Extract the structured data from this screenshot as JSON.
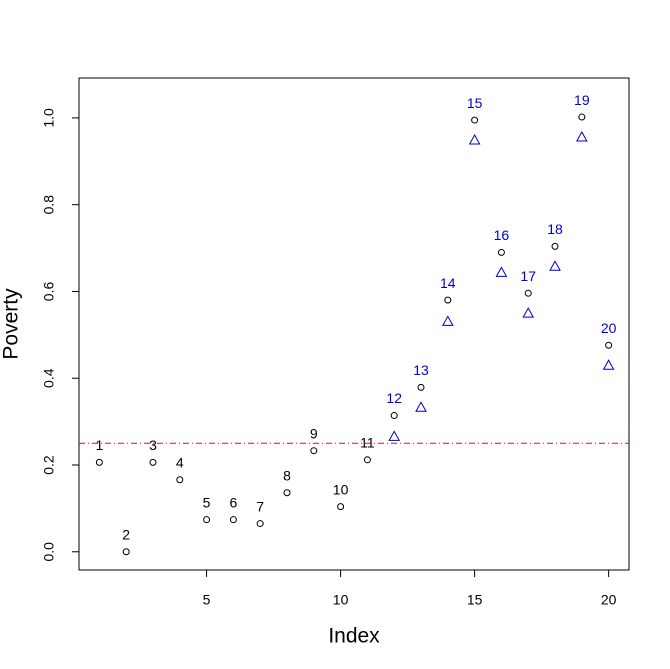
{
  "chart_data": {
    "type": "scatter",
    "x_label": "Index",
    "y_label": "Poverty",
    "x": [
      1,
      2,
      3,
      4,
      5,
      6,
      7,
      8,
      9,
      10,
      11,
      12,
      13,
      14,
      15,
      16,
      17,
      18,
      19,
      20
    ],
    "series": [
      {
        "color": "#000000",
        "marker": "circle",
        "values": [
          0.206,
          0.0,
          0.206,
          0.166,
          0.074,
          0.074,
          0.065,
          0.136,
          0.233,
          0.104,
          0.212,
          0.314,
          0.379,
          0.58,
          0.995,
          0.69,
          0.596,
          0.704,
          1.002,
          0.476
        ]
      },
      {
        "color": "#0000cd",
        "marker": "triangle",
        "values": [
          null,
          null,
          null,
          null,
          null,
          null,
          null,
          null,
          null,
          null,
          null,
          0.266,
          0.333,
          0.531,
          0.949,
          0.644,
          0.55,
          0.658,
          0.956,
          0.43
        ]
      }
    ],
    "point_labels": [
      "1",
      "2",
      "3",
      "4",
      "5",
      "6",
      "7",
      "8",
      "9",
      "10",
      "11",
      "12",
      "13",
      "14",
      "15",
      "16",
      "17",
      "18",
      "19",
      "20"
    ],
    "label_colors": [
      "#000000",
      "#000000",
      "#000000",
      "#000000",
      "#000000",
      "#000000",
      "#000000",
      "#000000",
      "#000000",
      "#000000",
      "#000000",
      "#0000cd",
      "#0000cd",
      "#0000cd",
      "#0000cd",
      "#0000cd",
      "#0000cd",
      "#0000cd",
      "#0000cd",
      "#0000cd"
    ],
    "hline": {
      "value": 0.25,
      "color": "#b22222"
    },
    "xlim": [
      0.24,
      20.76
    ],
    "ylim": [
      -0.042,
      1.092
    ],
    "xticks": [
      5,
      10,
      15,
      20
    ],
    "yticks": [
      {
        "value": 0,
        "label": "0.0"
      },
      0.2,
      0.4,
      0.6,
      0.8,
      {
        "value": 1,
        "label": "1.0"
      }
    ]
  }
}
